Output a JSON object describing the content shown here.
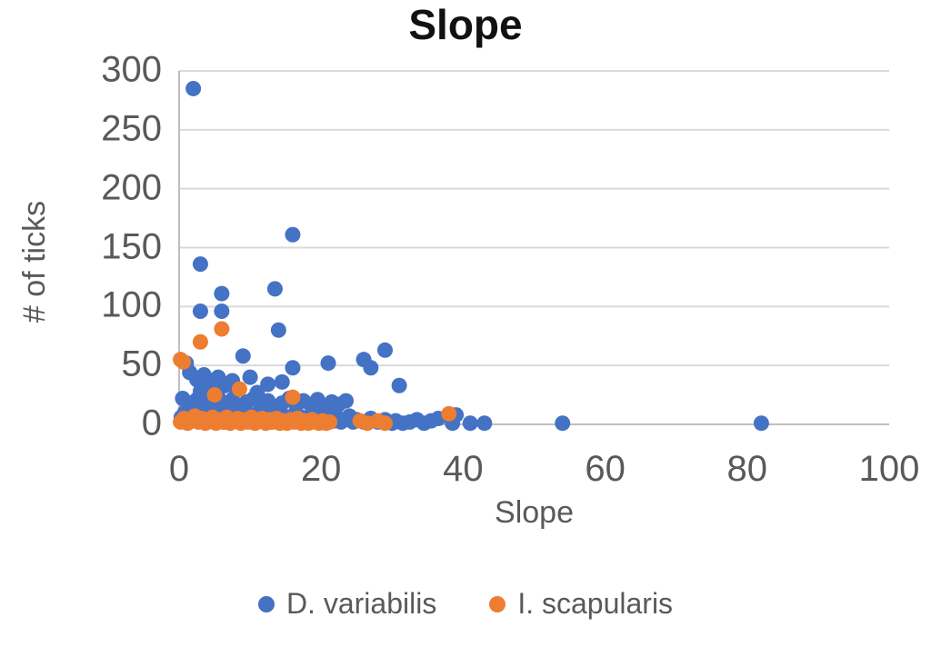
{
  "chart_data": {
    "type": "scatter",
    "title": "Slope",
    "xlabel": "Slope",
    "ylabel": "# of ticks",
    "xlim": [
      0,
      100
    ],
    "ylim": [
      0,
      300
    ],
    "xticks": [
      0,
      20,
      40,
      60,
      80,
      100
    ],
    "yticks": [
      300,
      250,
      200,
      150,
      100,
      50,
      0
    ],
    "grid": "horizontal",
    "legend_position": "bottom",
    "colors": {
      "gridline": "#d9d9d9",
      "axis_line": "#bfbfbf",
      "tick_text": "#595959",
      "title_text": "#111111"
    },
    "series": [
      {
        "name": "D. variabilis",
        "color": "#4472C4",
        "points": [
          [
            2,
            285
          ],
          [
            3,
            136
          ],
          [
            16,
            161
          ],
          [
            13.5,
            115
          ],
          [
            6,
            111
          ],
          [
            3,
            96
          ],
          [
            6,
            96
          ],
          [
            14,
            80
          ],
          [
            29,
            63
          ],
          [
            9,
            58
          ],
          [
            26,
            55
          ],
          [
            21,
            52
          ],
          [
            1,
            52
          ],
          [
            27,
            48
          ],
          [
            16,
            48
          ],
          [
            14.5,
            36
          ],
          [
            31,
            33
          ],
          [
            10,
            40
          ],
          [
            1.5,
            44
          ],
          [
            2.5,
            38
          ],
          [
            3.5,
            42
          ],
          [
            4.5,
            35
          ],
          [
            5.5,
            40
          ],
          [
            6.5,
            33
          ],
          [
            7.5,
            37
          ],
          [
            3,
            28
          ],
          [
            5,
            26
          ],
          [
            8,
            31
          ],
          [
            11,
            27
          ],
          [
            12.5,
            34
          ],
          [
            0.5,
            22
          ],
          [
            1.5,
            18
          ],
          [
            2.5,
            21
          ],
          [
            3.5,
            16
          ],
          [
            4.5,
            20
          ],
          [
            5.5,
            23
          ],
          [
            6.5,
            17
          ],
          [
            7.5,
            21
          ],
          [
            8.5,
            15
          ],
          [
            9.5,
            19
          ],
          [
            10.5,
            22
          ],
          [
            11.5,
            16
          ],
          [
            12.5,
            20
          ],
          [
            13.5,
            15
          ],
          [
            14.5,
            18
          ],
          [
            15.5,
            22
          ],
          [
            16.5,
            16
          ],
          [
            17.5,
            20
          ],
          [
            18.5,
            17
          ],
          [
            19.5,
            21
          ],
          [
            20.5,
            15
          ],
          [
            21.5,
            19
          ],
          [
            22.5,
            17
          ],
          [
            23.5,
            20
          ],
          [
            0.3,
            6
          ],
          [
            0.8,
            10
          ],
          [
            1.3,
            3
          ],
          [
            1.8,
            8
          ],
          [
            2.3,
            12
          ],
          [
            2.8,
            5
          ],
          [
            3.3,
            9
          ],
          [
            3.8,
            2
          ],
          [
            4.3,
            7
          ],
          [
            4.8,
            11
          ],
          [
            5.3,
            4
          ],
          [
            5.8,
            8
          ],
          [
            6.3,
            2
          ],
          [
            6.8,
            6
          ],
          [
            7.3,
            10
          ],
          [
            7.8,
            3
          ],
          [
            8.3,
            7
          ],
          [
            8.8,
            12
          ],
          [
            9.3,
            5
          ],
          [
            9.8,
            9
          ],
          [
            10.3,
            2
          ],
          [
            10.8,
            6
          ],
          [
            11.3,
            10
          ],
          [
            11.8,
            4
          ],
          [
            12.3,
            8
          ],
          [
            12.8,
            2
          ],
          [
            13.3,
            6
          ],
          [
            13.8,
            11
          ],
          [
            14.3,
            3
          ],
          [
            14.8,
            7
          ],
          [
            15.3,
            2
          ],
          [
            15.8,
            5
          ],
          [
            16.3,
            9
          ],
          [
            16.8,
            3
          ],
          [
            17.3,
            6
          ],
          [
            17.8,
            2
          ],
          [
            18.3,
            5
          ],
          [
            18.8,
            8
          ],
          [
            19.3,
            3
          ],
          [
            19.8,
            6
          ],
          [
            20.3,
            2
          ],
          [
            20.8,
            5
          ],
          [
            21.3,
            8
          ],
          [
            21.8,
            3
          ],
          [
            22.3,
            6
          ],
          [
            22.8,
            2
          ],
          [
            23.3,
            4
          ],
          [
            24,
            7
          ],
          [
            24.5,
            2
          ],
          [
            25,
            4
          ],
          [
            26,
            2
          ],
          [
            27,
            5
          ],
          [
            28,
            2
          ],
          [
            29,
            4
          ],
          [
            30,
            1
          ],
          [
            30.5,
            3
          ],
          [
            31.5,
            1
          ],
          [
            32.5,
            2
          ],
          [
            33.5,
            4
          ],
          [
            34.5,
            1
          ],
          [
            35.5,
            3
          ],
          [
            36.5,
            5
          ],
          [
            39,
            8
          ],
          [
            38.5,
            1
          ],
          [
            41,
            1
          ],
          [
            43,
            1
          ],
          [
            54,
            1
          ],
          [
            82,
            1
          ]
        ]
      },
      {
        "name": "I. scapularis",
        "color": "#ED7D31",
        "points": [
          [
            0.2,
            55
          ],
          [
            0.6,
            53
          ],
          [
            6,
            81
          ],
          [
            3,
            70
          ],
          [
            5,
            25
          ],
          [
            8.5,
            30
          ],
          [
            16,
            23
          ],
          [
            38,
            9
          ],
          [
            0.2,
            2
          ],
          [
            0.7,
            5
          ],
          [
            1.2,
            1
          ],
          [
            1.7,
            4
          ],
          [
            2.2,
            7
          ],
          [
            2.7,
            2
          ],
          [
            3.2,
            5
          ],
          [
            3.7,
            1
          ],
          [
            4.2,
            3
          ],
          [
            4.7,
            6
          ],
          [
            5.2,
            1
          ],
          [
            5.7,
            4
          ],
          [
            6.2,
            2
          ],
          [
            6.7,
            6
          ],
          [
            7.2,
            1
          ],
          [
            7.7,
            3
          ],
          [
            8.2,
            5
          ],
          [
            8.7,
            1
          ],
          [
            9.2,
            4
          ],
          [
            9.7,
            2
          ],
          [
            10.2,
            6
          ],
          [
            10.7,
            1
          ],
          [
            11.2,
            3
          ],
          [
            11.7,
            5
          ],
          [
            12.2,
            1
          ],
          [
            12.7,
            4
          ],
          [
            13.2,
            2
          ],
          [
            13.7,
            5
          ],
          [
            14.2,
            1
          ],
          [
            14.7,
            3
          ],
          [
            15.2,
            1
          ],
          [
            15.7,
            4
          ],
          [
            16.2,
            2
          ],
          [
            16.7,
            5
          ],
          [
            17.2,
            1
          ],
          [
            17.7,
            3
          ],
          [
            18.2,
            1
          ],
          [
            18.7,
            4
          ],
          [
            19.2,
            2
          ],
          [
            19.7,
            1
          ],
          [
            20.2,
            3
          ],
          [
            20.7,
            1
          ],
          [
            21.2,
            2
          ],
          [
            25.5,
            3
          ],
          [
            26.5,
            1
          ],
          [
            28,
            3
          ],
          [
            29,
            1
          ]
        ]
      }
    ]
  }
}
